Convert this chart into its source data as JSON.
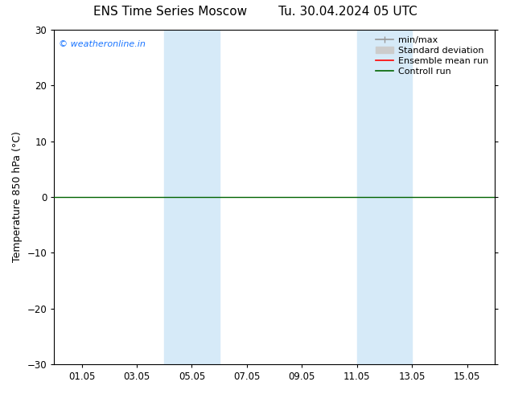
{
  "title": "ENS Time Series Moscow",
  "subtitle": "Tu. 30.04.2024 05 UTC",
  "ylabel": "Temperature 850 hPa (°C)",
  "ylim": [
    -30,
    30
  ],
  "yticks": [
    -30,
    -20,
    -10,
    0,
    10,
    20,
    30
  ],
  "xtick_labels": [
    "01.05",
    "03.05",
    "05.05",
    "07.05",
    "09.05",
    "11.05",
    "13.05",
    "15.05"
  ],
  "xtick_positions": [
    1,
    3,
    5,
    7,
    9,
    11,
    13,
    15
  ],
  "xlim": [
    0,
    16
  ],
  "shaded_regions": [
    {
      "x_start": 4.0,
      "x_end": 6.0
    },
    {
      "x_start": 11.0,
      "x_end": 13.0
    }
  ],
  "shaded_color": "#d6eaf8",
  "zero_line_y": 0,
  "zero_line_color": "#006400",
  "watermark_text": "© weatheronline.in",
  "watermark_color": "#1a75ff",
  "background_color": "#ffffff",
  "legend_items": [
    {
      "label": "min/max",
      "color": "#999999",
      "lw": 1.2,
      "style": "solid",
      "type": "line_with_caps"
    },
    {
      "label": "Standard deviation",
      "color": "#cccccc",
      "lw": 6,
      "style": "solid",
      "type": "box"
    },
    {
      "label": "Ensemble mean run",
      "color": "#ff0000",
      "lw": 1.2,
      "style": "solid",
      "type": "line"
    },
    {
      "label": "Controll run",
      "color": "#006400",
      "lw": 1.2,
      "style": "solid",
      "type": "line"
    }
  ],
  "title_fontsize": 11,
  "label_fontsize": 9,
  "tick_fontsize": 8.5,
  "watermark_fontsize": 8,
  "top_spine_visible": true,
  "right_spine_visible": true
}
